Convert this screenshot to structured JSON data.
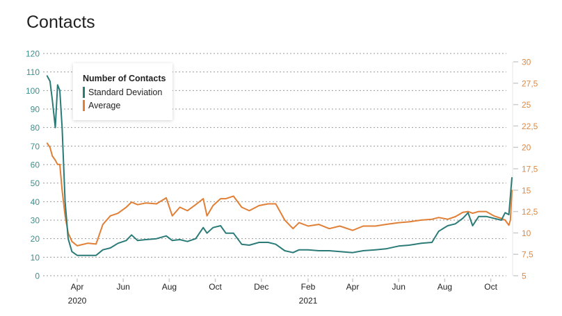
{
  "page_title": "Contacts",
  "chart_data": {
    "type": "line",
    "legend": {
      "title": "Number of Contacts",
      "placement": "top-left"
    },
    "colors": {
      "sd": "#2a7b78",
      "avg": "#e07f35",
      "left_axis": "#3a8f8c",
      "right_axis": "#e0883f"
    },
    "grid": true,
    "y_left": {
      "range": [
        0,
        120
      ],
      "ticks": [
        "0",
        "10",
        "20",
        "30",
        "40",
        "50",
        "60",
        "70",
        "80",
        "90",
        "100",
        "110",
        "120"
      ]
    },
    "y_right": {
      "range": [
        5,
        30
      ],
      "ticks": [
        "5",
        "7,5",
        "10",
        "12,5",
        "15",
        "17,5",
        "20",
        "22,5",
        "25",
        "27,5",
        "30"
      ]
    },
    "x_ticks": [
      {
        "date": "2020-04-01",
        "label": "Apr",
        "year": "2020"
      },
      {
        "date": "2020-06-01",
        "label": "Jun"
      },
      {
        "date": "2020-08-01",
        "label": "Aug"
      },
      {
        "date": "2020-10-01",
        "label": "Oct"
      },
      {
        "date": "2020-12-01",
        "label": "Dec"
      },
      {
        "date": "2021-02-01",
        "label": "Feb",
        "year": "2021"
      },
      {
        "date": "2021-04-01",
        "label": "Apr"
      },
      {
        "date": "2021-06-01",
        "label": "Jun"
      },
      {
        "date": "2021-08-01",
        "label": "Aug"
      },
      {
        "date": "2021-10-01",
        "label": "Oct"
      }
    ],
    "series": [
      {
        "name": "Standard Deviation",
        "axis": "left",
        "key": "sd"
      },
      {
        "name": "Average",
        "axis": "right",
        "key": "avg"
      }
    ],
    "points": [
      [
        "2020-02-21",
        108,
        20.5
      ],
      [
        "2020-02-25",
        105,
        20
      ],
      [
        "2020-02-28",
        95,
        19
      ],
      [
        "2020-03-03",
        80,
        18.5
      ],
      [
        "2020-03-06",
        103,
        18
      ],
      [
        "2020-03-09",
        100,
        18
      ],
      [
        "2020-03-12",
        80,
        15
      ],
      [
        "2020-03-16",
        40,
        12
      ],
      [
        "2020-03-20",
        20,
        10
      ],
      [
        "2020-03-25",
        13,
        9
      ],
      [
        "2020-04-01",
        11,
        8.5
      ],
      [
        "2020-04-15",
        11,
        8.8
      ],
      [
        "2020-04-26",
        11,
        8.7
      ],
      [
        "2020-05-05",
        14,
        11
      ],
      [
        "2020-05-15",
        15,
        12
      ],
      [
        "2020-05-25",
        17.5,
        12.3
      ],
      [
        "2020-06-05",
        19,
        13
      ],
      [
        "2020-06-12",
        22,
        13.6
      ],
      [
        "2020-06-20",
        19,
        13.3
      ],
      [
        "2020-07-01",
        19.5,
        13.5
      ],
      [
        "2020-07-15",
        20,
        13.4
      ],
      [
        "2020-07-28",
        21.5,
        14.1
      ],
      [
        "2020-08-05",
        19,
        12
      ],
      [
        "2020-08-15",
        19.5,
        13
      ],
      [
        "2020-08-25",
        18.5,
        12.6
      ],
      [
        "2020-09-05",
        20,
        13.3
      ],
      [
        "2020-09-15",
        26,
        14
      ],
      [
        "2020-09-20",
        23,
        12
      ],
      [
        "2020-09-28",
        26,
        13.2
      ],
      [
        "2020-10-08",
        27,
        14
      ],
      [
        "2020-10-15",
        23,
        14
      ],
      [
        "2020-10-25",
        23,
        14.3
      ],
      [
        "2020-11-05",
        17,
        13
      ],
      [
        "2020-11-15",
        16.5,
        12.6
      ],
      [
        "2020-11-28",
        18,
        13.2
      ],
      [
        "2020-12-10",
        18,
        13.4
      ],
      [
        "2020-12-20",
        17,
        13.4
      ],
      [
        "2021-01-01",
        13.5,
        11.5
      ],
      [
        "2021-01-12",
        12.5,
        10.5
      ],
      [
        "2021-01-20",
        14,
        11.2
      ],
      [
        "2021-02-01",
        14,
        10.8
      ],
      [
        "2021-02-15",
        13.5,
        11
      ],
      [
        "2021-03-01",
        13.5,
        10.5
      ],
      [
        "2021-03-15",
        13,
        10.8
      ],
      [
        "2021-04-01",
        12.5,
        10.3
      ],
      [
        "2021-04-15",
        13.5,
        10.8
      ],
      [
        "2021-05-01",
        14,
        10.8
      ],
      [
        "2021-05-15",
        14.5,
        11
      ],
      [
        "2021-06-01",
        16,
        11.2
      ],
      [
        "2021-06-15",
        16.5,
        11.3
      ],
      [
        "2021-07-01",
        17.5,
        11.5
      ],
      [
        "2021-07-15",
        18,
        11.6
      ],
      [
        "2021-07-24",
        24,
        11.8
      ],
      [
        "2021-08-05",
        27,
        11.6
      ],
      [
        "2021-08-15",
        28,
        11.9
      ],
      [
        "2021-08-25",
        31,
        12.4
      ],
      [
        "2021-09-01",
        34,
        12.5
      ],
      [
        "2021-09-07",
        27,
        12.3
      ],
      [
        "2021-09-15",
        32,
        12.5
      ],
      [
        "2021-09-25",
        32,
        12.5
      ],
      [
        "2021-10-05",
        31,
        12
      ],
      [
        "2021-10-15",
        30,
        11.7
      ],
      [
        "2021-10-20",
        34,
        11.5
      ],
      [
        "2021-10-25",
        33,
        10.9
      ],
      [
        "2021-10-27",
        43,
        11.5
      ],
      [
        "2021-10-29",
        53,
        15
      ]
    ]
  }
}
